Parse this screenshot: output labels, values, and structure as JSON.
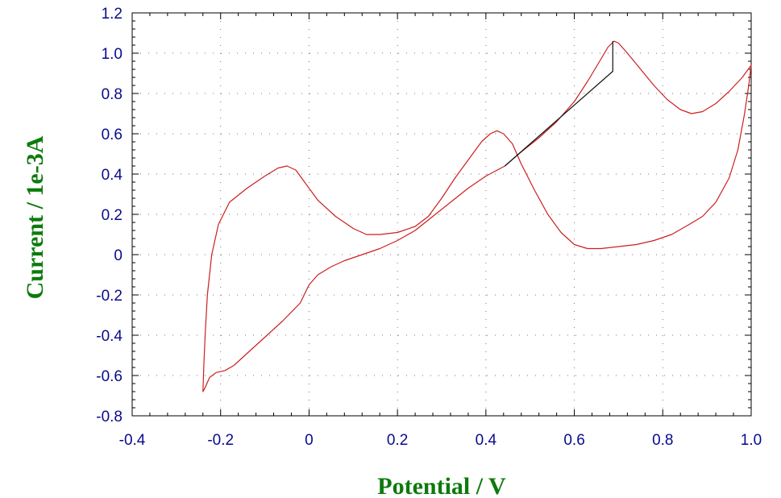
{
  "chart_data": {
    "type": "line",
    "xlabel": "Potential / V",
    "ylabel": "Current / 1e-3A",
    "xlim": [
      -0.4,
      1.0
    ],
    "ylim": [
      -0.8,
      1.2
    ],
    "x_ticks": [
      "-0.4",
      "-0.2",
      "0",
      "0.2",
      "0.4",
      "0.6",
      "0.8",
      "1.0"
    ],
    "y_ticks": [
      "1.2",
      "1.0",
      "0.8",
      "0.6",
      "0.4",
      "0.2",
      "0",
      "-0.2",
      "-0.4",
      "-0.6",
      "-0.8"
    ],
    "grid": "dotted",
    "colors": {
      "axis_text": "#0a0a8c",
      "axis_title": "#0d7a0d",
      "series": "#cc1f1f",
      "segment": "#111111"
    },
    "series": [
      {
        "color": "#cc1f1f",
        "points": [
          [
            0.443,
            0.44
          ],
          [
            0.48,
            0.51
          ],
          [
            0.52,
            0.58
          ],
          [
            0.56,
            0.66
          ],
          [
            0.6,
            0.76
          ],
          [
            0.63,
            0.86
          ],
          [
            0.66,
            0.97
          ],
          [
            0.676,
            1.03
          ],
          [
            0.69,
            1.06
          ],
          [
            0.7,
            1.05
          ],
          [
            0.72,
            1.0
          ],
          [
            0.75,
            0.92
          ],
          [
            0.78,
            0.84
          ],
          [
            0.81,
            0.77
          ],
          [
            0.84,
            0.72
          ],
          [
            0.865,
            0.7
          ],
          [
            0.89,
            0.71
          ],
          [
            0.92,
            0.75
          ],
          [
            0.95,
            0.81
          ],
          [
            0.98,
            0.88
          ],
          [
            1.0,
            0.94
          ],
          [
            0.995,
            0.85
          ],
          [
            0.985,
            0.7
          ],
          [
            0.97,
            0.52
          ],
          [
            0.95,
            0.38
          ],
          [
            0.92,
            0.26
          ],
          [
            0.89,
            0.19
          ],
          [
            0.86,
            0.15
          ],
          [
            0.82,
            0.1
          ],
          [
            0.78,
            0.07
          ],
          [
            0.74,
            0.05
          ],
          [
            0.7,
            0.04
          ],
          [
            0.66,
            0.03
          ],
          [
            0.63,
            0.03
          ],
          [
            0.6,
            0.05
          ],
          [
            0.57,
            0.11
          ],
          [
            0.54,
            0.2
          ],
          [
            0.51,
            0.32
          ],
          [
            0.48,
            0.45
          ],
          [
            0.46,
            0.55
          ],
          [
            0.44,
            0.6
          ],
          [
            0.425,
            0.615
          ],
          [
            0.41,
            0.6
          ],
          [
            0.39,
            0.56
          ],
          [
            0.36,
            0.47
          ],
          [
            0.33,
            0.38
          ],
          [
            0.3,
            0.28
          ],
          [
            0.27,
            0.19
          ],
          [
            0.24,
            0.14
          ],
          [
            0.2,
            0.11
          ],
          [
            0.16,
            0.1
          ],
          [
            0.13,
            0.1
          ],
          [
            0.1,
            0.13
          ],
          [
            0.06,
            0.19
          ],
          [
            0.02,
            0.27
          ],
          [
            -0.01,
            0.36
          ],
          [
            -0.03,
            0.42
          ],
          [
            -0.05,
            0.44
          ],
          [
            -0.07,
            0.43
          ],
          [
            -0.1,
            0.39
          ],
          [
            -0.14,
            0.33
          ],
          [
            -0.18,
            0.26
          ],
          [
            -0.205,
            0.15
          ],
          [
            -0.22,
            0.0
          ],
          [
            -0.23,
            -0.2
          ],
          [
            -0.235,
            -0.4
          ],
          [
            -0.238,
            -0.55
          ],
          [
            -0.24,
            -0.68
          ],
          [
            -0.235,
            -0.66
          ],
          [
            -0.225,
            -0.61
          ],
          [
            -0.21,
            -0.585
          ],
          [
            -0.19,
            -0.575
          ],
          [
            -0.17,
            -0.55
          ],
          [
            -0.14,
            -0.49
          ],
          [
            -0.1,
            -0.41
          ],
          [
            -0.06,
            -0.33
          ],
          [
            -0.02,
            -0.24
          ],
          [
            0.0,
            -0.15
          ],
          [
            0.02,
            -0.1
          ],
          [
            0.05,
            -0.06
          ],
          [
            0.08,
            -0.03
          ],
          [
            0.12,
            0.0
          ],
          [
            0.16,
            0.03
          ],
          [
            0.2,
            0.07
          ],
          [
            0.24,
            0.12
          ],
          [
            0.28,
            0.19
          ],
          [
            0.32,
            0.26
          ],
          [
            0.36,
            0.33
          ],
          [
            0.4,
            0.39
          ],
          [
            0.443,
            0.44
          ]
        ]
      },
      {
        "color": "#111111",
        "points": [
          [
            0.443,
            0.44
          ],
          [
            0.687,
            0.91
          ],
          [
            0.687,
            1.06
          ]
        ]
      }
    ]
  }
}
